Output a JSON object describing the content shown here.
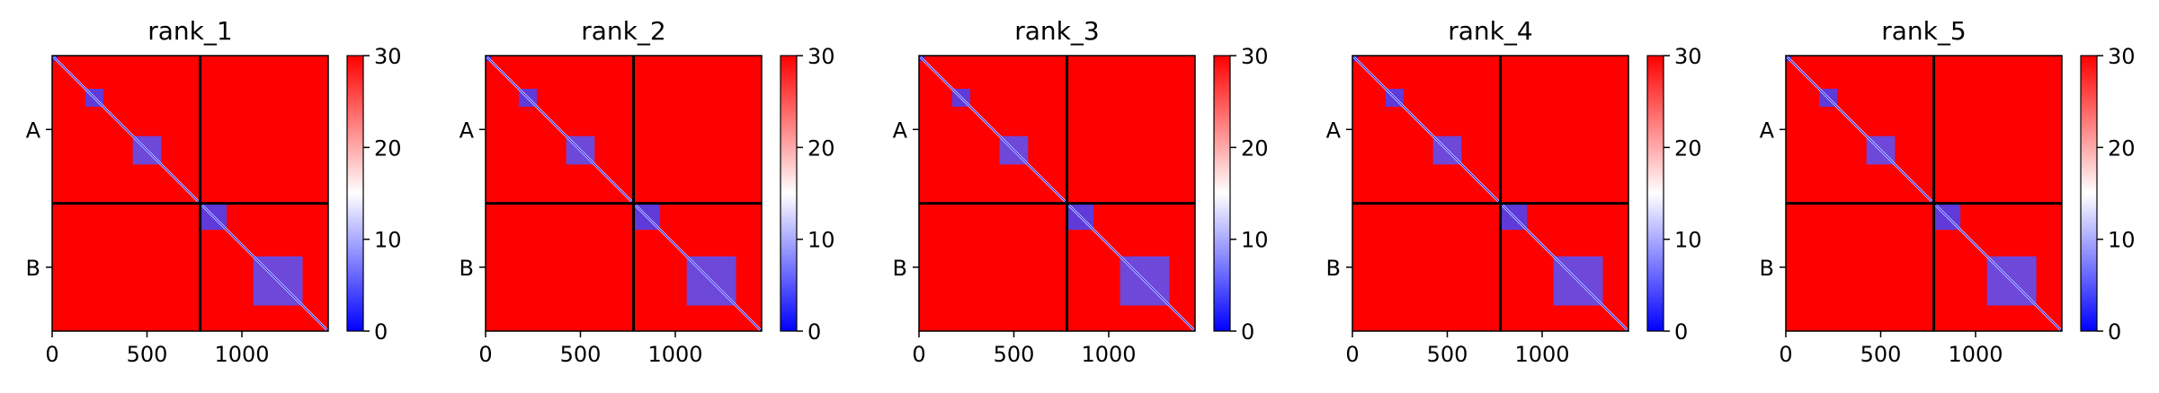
{
  "chart_data": {
    "type": "heatmap",
    "colormap": {
      "name": "bwr",
      "low": "#0000ff",
      "mid": "#ffffff",
      "high": "#ff0000"
    },
    "vmin": 0,
    "vmax": 30,
    "colorbar_ticks": [
      "0",
      "10",
      "20",
      "30"
    ],
    "x_ticks": [
      {
        "value": 0,
        "label": "0"
      },
      {
        "value": 500,
        "label": "500"
      },
      {
        "value": 1000,
        "label": "1000"
      }
    ],
    "xlim": [
      0,
      1455
    ],
    "chain_break": 780,
    "chain_labels": [
      "A",
      "B"
    ],
    "diagonal_domains": [
      {
        "start": 0,
        "end": 30,
        "value": 2
      },
      {
        "start": 175,
        "end": 270,
        "value": 4
      },
      {
        "start": 425,
        "end": 575,
        "value": 5
      },
      {
        "start": 780,
        "end": 920,
        "value": 4
      },
      {
        "start": 1060,
        "end": 1320,
        "value": 5
      }
    ],
    "panels": [
      {
        "title": "rank_1"
      },
      {
        "title": "rank_2"
      },
      {
        "title": "rank_3"
      },
      {
        "title": "rank_4"
      },
      {
        "title": "rank_5"
      }
    ]
  }
}
